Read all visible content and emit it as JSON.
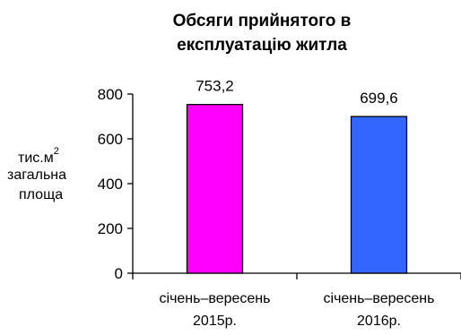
{
  "chart_data": {
    "type": "bar",
    "title_lines": [
      "Обсяги прийнятого в",
      "експлуатацію житла"
    ],
    "ylabel": {
      "line1": "тис.м",
      "superscript": "2",
      "line2": "загальна",
      "line3": "площа"
    },
    "categories": [
      {
        "line1": "січень–вересень",
        "line2": "2015р."
      },
      {
        "line1": "січень–вересень",
        "line2": "2016р."
      }
    ],
    "values": [
      753.2,
      699.6
    ],
    "value_labels": [
      "753,2",
      "699,6"
    ],
    "colors": [
      "#ff00ff",
      "#3366ff"
    ],
    "ylim": [
      0,
      800
    ],
    "yticks": [
      "0",
      "200",
      "400",
      "600",
      "800"
    ],
    "grid": false,
    "legend": "none"
  }
}
